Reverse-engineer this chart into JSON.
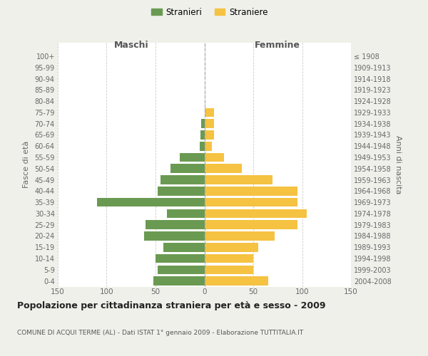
{
  "age_groups": [
    "0-4",
    "5-9",
    "10-14",
    "15-19",
    "20-24",
    "25-29",
    "30-34",
    "35-39",
    "40-44",
    "45-49",
    "50-54",
    "55-59",
    "60-64",
    "65-69",
    "70-74",
    "75-79",
    "80-84",
    "85-89",
    "90-94",
    "95-99",
    "100+"
  ],
  "birth_years": [
    "2004-2008",
    "1999-2003",
    "1994-1998",
    "1989-1993",
    "1984-1988",
    "1979-1983",
    "1974-1978",
    "1969-1973",
    "1964-1968",
    "1959-1963",
    "1954-1958",
    "1949-1953",
    "1944-1948",
    "1939-1943",
    "1934-1938",
    "1929-1933",
    "1924-1928",
    "1919-1923",
    "1914-1918",
    "1909-1913",
    "≤ 1908"
  ],
  "maschi": [
    52,
    48,
    50,
    42,
    62,
    60,
    38,
    110,
    48,
    45,
    35,
    25,
    5,
    4,
    3,
    0,
    0,
    0,
    0,
    0,
    0
  ],
  "femmine": [
    65,
    50,
    50,
    55,
    72,
    95,
    105,
    95,
    95,
    70,
    38,
    20,
    8,
    10,
    10,
    10,
    0,
    0,
    0,
    0,
    0
  ],
  "color_maschi": "#6a9a52",
  "color_femmine": "#f5c242",
  "xlim": 150,
  "title": "Popolazione per cittadinanza straniera per età e sesso - 2009",
  "subtitle": "COMUNE DI ACQUI TERME (AL) - Dati ISTAT 1° gennaio 2009 - Elaborazione TUTTITALIA.IT",
  "ylabel_left": "Fasce di età",
  "ylabel_right": "Anni di nascita",
  "header_left": "Maschi",
  "header_right": "Femmine",
  "legend_stranieri": "Stranieri",
  "legend_straniere": "Straniere",
  "bg_color": "#f0f0eb",
  "plot_bg_color": "#ffffff"
}
